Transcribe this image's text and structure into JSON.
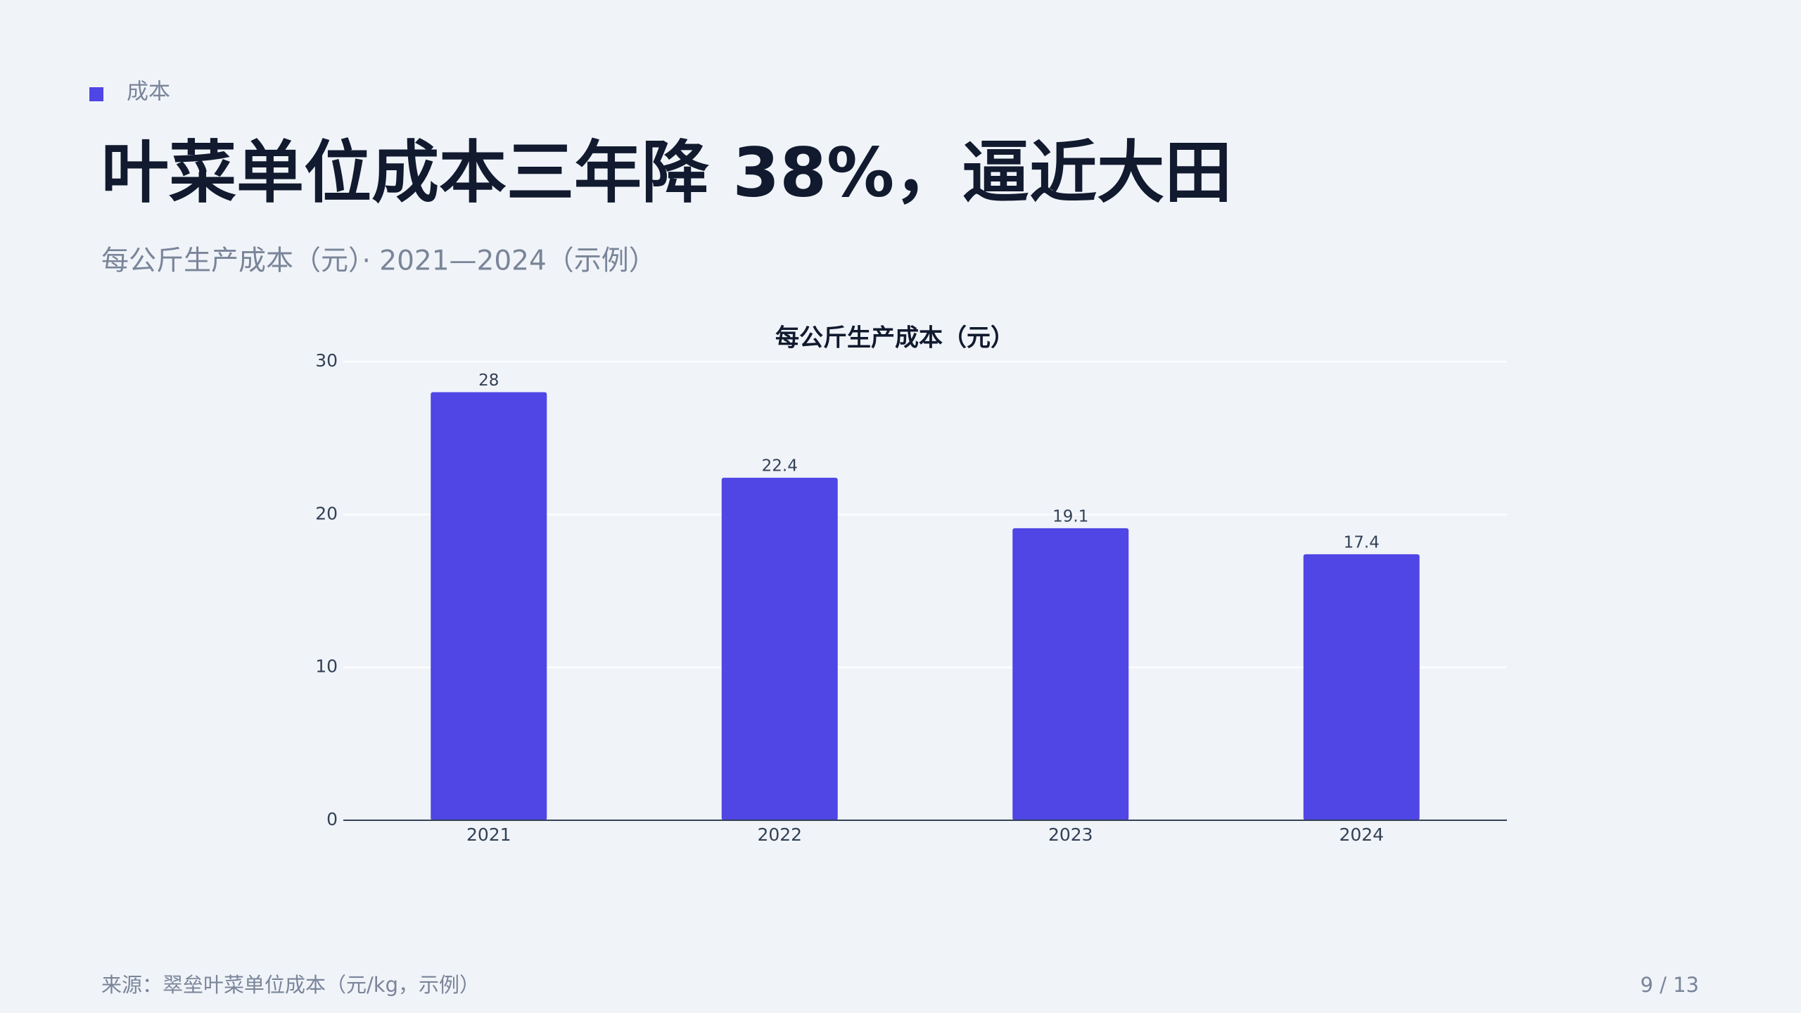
{
  "section": "成本",
  "title": "叶菜单位成本三年降 38%，逼近大田",
  "subtitle": "每公斤生产成本（元）· 2021—2024（示例）",
  "chart_data": {
    "type": "bar",
    "title": "每公斤生产成本（元）",
    "categories": [
      "2021",
      "2022",
      "2023",
      "2024"
    ],
    "values": [
      28,
      22.4,
      19.1,
      17.4
    ],
    "color": "#4f46e5",
    "ylim": [
      0,
      30
    ],
    "yticks": [
      0,
      10,
      20,
      30
    ],
    "grid": true
  },
  "footer": {
    "source": "来源：翠垒叶菜单位成本（元/kg，示例）",
    "page": "9 / 13"
  }
}
